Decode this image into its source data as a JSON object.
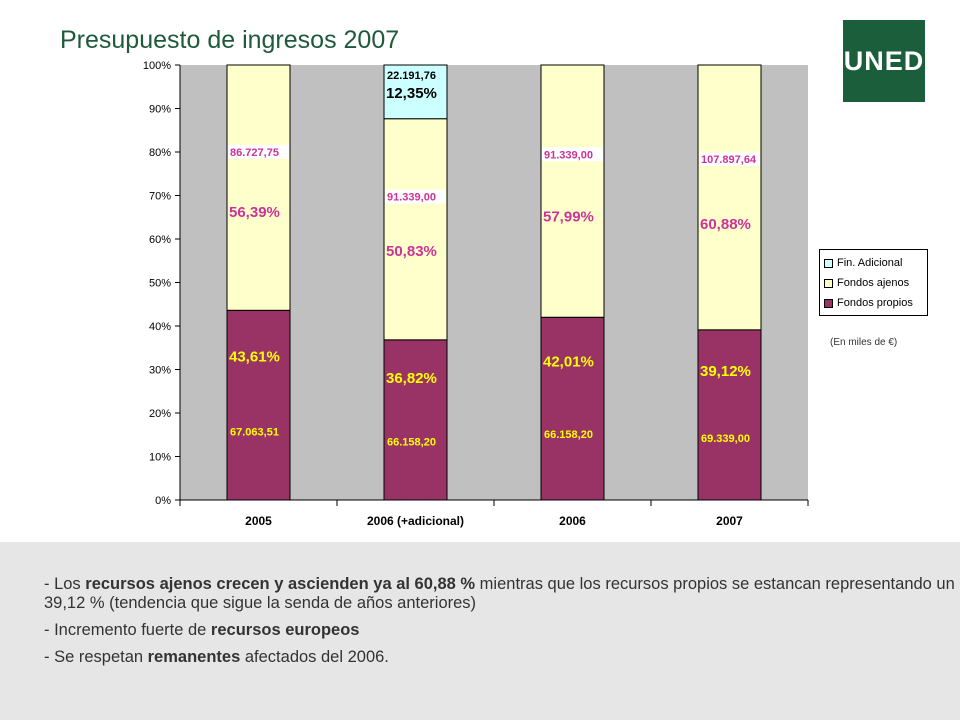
{
  "title": "Presupuesto de ingresos 2007",
  "logo": "UNED",
  "note": "(En miles de €)",
  "colors": {
    "fondos_propios": "#993366",
    "fondos_ajenos": "#ffffcc",
    "fin_adicional": "#ccffff",
    "plot_bg": "#c0c0c0",
    "percent_propios": "#ffff00",
    "percent_ajenos": "#cc3399"
  },
  "chart_data": {
    "type": "bar",
    "stacked": "percent",
    "categories": [
      "2005",
      "2006 (+adicional)",
      "2006",
      "2007"
    ],
    "ylim": [
      0,
      100
    ],
    "yticks": [
      "0%",
      "10%",
      "20%",
      "30%",
      "40%",
      "50%",
      "60%",
      "70%",
      "80%",
      "90%",
      "100%"
    ],
    "grid": false,
    "legend_position": "right",
    "series": [
      {
        "name": "Fondos propios",
        "values": [
          43.61,
          36.82,
          42.01,
          39.12
        ],
        "percent_labels": [
          "43,61%",
          "36,82%",
          "42,01%",
          "39,12%"
        ],
        "amount_labels": [
          "67.063,51",
          "66.158,20",
          "66.158,20",
          "69.339,00"
        ]
      },
      {
        "name": "Fondos ajenos",
        "values": [
          56.39,
          50.83,
          57.99,
          60.88
        ],
        "percent_labels": [
          "56,39%",
          "50,83%",
          "57,99%",
          "60,88%"
        ],
        "amount_labels": [
          "86.727,75",
          "91.339,00",
          "91.339,00",
          "107.897,64"
        ]
      },
      {
        "name": "Fin. Adicional",
        "values": [
          0,
          12.35,
          0,
          0
        ],
        "percent_labels": [
          "",
          "12,35%",
          "",
          ""
        ],
        "amount_labels": [
          "",
          "22.191,76",
          "",
          ""
        ]
      }
    ]
  },
  "legend_items": [
    "Fin. Adicional",
    "Fondos ajenos",
    "Fondos propios"
  ],
  "bullets": [
    {
      "pre": "- Los ",
      "b1": "recursos ajenos crecen y ascienden ya al 60,88 %",
      "post": " mientras que los recursos propios se estancan representando un 39,12 % (tendencia que sigue la senda  de años anteriores)"
    },
    {
      "pre": "- Incremento fuerte de ",
      "b1": "recursos europeos",
      "post": ""
    },
    {
      "pre": "- Se respetan ",
      "b1": "remanentes",
      "post": " afectados del 2006."
    }
  ]
}
